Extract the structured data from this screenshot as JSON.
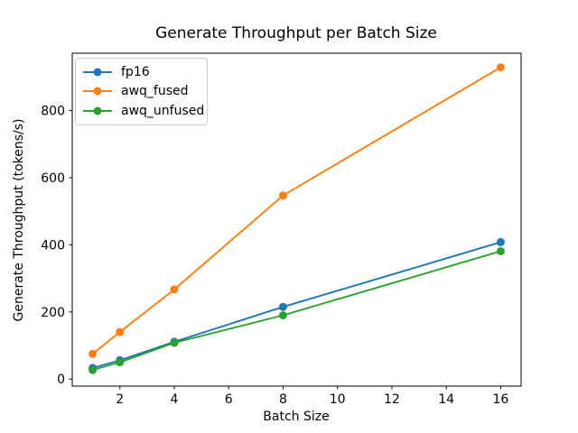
{
  "figure": {
    "background": "#ffffff",
    "spine_color": "#000000"
  },
  "chart_data": {
    "type": "line",
    "title": "Generate Throughput per Batch Size",
    "xlabel": "Batch Size",
    "ylabel": "Generate Throughput (tokens/s)",
    "x": [
      1,
      2,
      4,
      8,
      16
    ],
    "series": [
      {
        "name": "fp16",
        "color": "#1f77b4",
        "values": [
          33,
          56,
          111,
          215,
          408
        ]
      },
      {
        "name": "awq_fused",
        "color": "#ff7f0e",
        "values": [
          75,
          140,
          267,
          547,
          929
        ]
      },
      {
        "name": "awq_unfused",
        "color": "#2ca02c",
        "values": [
          27,
          50,
          108,
          190,
          381
        ]
      }
    ],
    "xticks": [
      2,
      4,
      6,
      8,
      10,
      12,
      14,
      16
    ],
    "yticks": [
      0,
      200,
      400,
      600,
      800
    ],
    "xlim": [
      0.25,
      16.75
    ],
    "ylim": [
      -21,
      971
    ],
    "grid": false,
    "marker": "o",
    "legend_position": "upper left"
  }
}
